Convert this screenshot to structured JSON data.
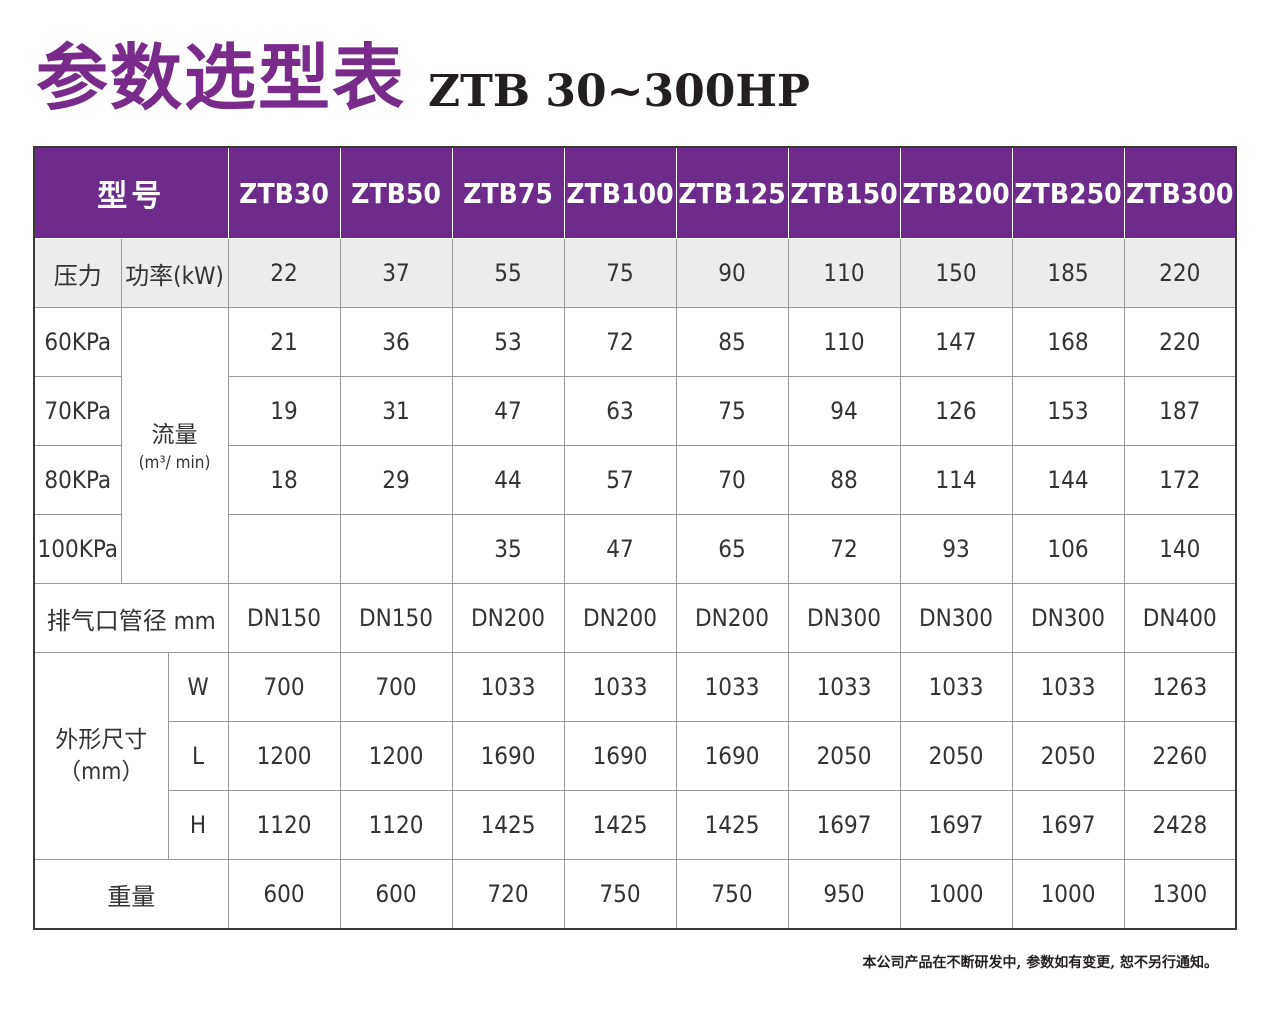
{
  "title": {
    "zh": "参数选型表",
    "model": "ZTB 30~300HP"
  },
  "header": {
    "label": "型号",
    "models": [
      "ZTB30",
      "ZTB50",
      "ZTB75",
      "ZTB100",
      "ZTB125",
      "ZTB150",
      "ZTB200",
      "ZTB250",
      "ZTB300"
    ]
  },
  "power": {
    "label_pressure": "压力",
    "label_power": "功率(kW)",
    "values": [
      "22",
      "37",
      "55",
      "75",
      "90",
      "110",
      "150",
      "185",
      "220"
    ]
  },
  "flow": {
    "label": "流量",
    "unit": "(m³/ min)",
    "rows": [
      {
        "pressure": "60KPa",
        "values": [
          "21",
          "36",
          "53",
          "72",
          "85",
          "110",
          "147",
          "168",
          "220"
        ]
      },
      {
        "pressure": "70KPa",
        "values": [
          "19",
          "31",
          "47",
          "63",
          "75",
          "94",
          "126",
          "153",
          "187"
        ]
      },
      {
        "pressure": "80KPa",
        "values": [
          "18",
          "29",
          "44",
          "57",
          "70",
          "88",
          "114",
          "144",
          "172"
        ]
      },
      {
        "pressure": "100KPa",
        "values": [
          "",
          "",
          "35",
          "47",
          "65",
          "72",
          "93",
          "106",
          "140"
        ]
      }
    ]
  },
  "exhaust": {
    "label": "排气口管径 mm",
    "values": [
      "DN150",
      "DN150",
      "DN200",
      "DN200",
      "DN200",
      "DN300",
      "DN300",
      "DN300",
      "DN400"
    ]
  },
  "dimensions": {
    "label": "外形尺寸",
    "unit": "（mm）",
    "rows": [
      {
        "axis": "W",
        "values": [
          "700",
          "700",
          "1033",
          "1033",
          "1033",
          "1033",
          "1033",
          "1033",
          "1263"
        ]
      },
      {
        "axis": "L",
        "values": [
          "1200",
          "1200",
          "1690",
          "1690",
          "1690",
          "2050",
          "2050",
          "2050",
          "2260"
        ]
      },
      {
        "axis": "H",
        "values": [
          "1120",
          "1120",
          "1425",
          "1425",
          "1425",
          "1697",
          "1697",
          "1697",
          "2428"
        ]
      }
    ]
  },
  "weight": {
    "label": "重量",
    "values": [
      "600",
      "600",
      "720",
      "750",
      "750",
      "950",
      "1000",
      "1000",
      "1300"
    ]
  },
  "footnote": "本公司产品在不断研发中, 参数如有变更, 恕不另行通知。",
  "colors": {
    "header_bg": "#6f2b8c",
    "title": "#7a2a8a",
    "power_row_bg": "#ececec"
  }
}
